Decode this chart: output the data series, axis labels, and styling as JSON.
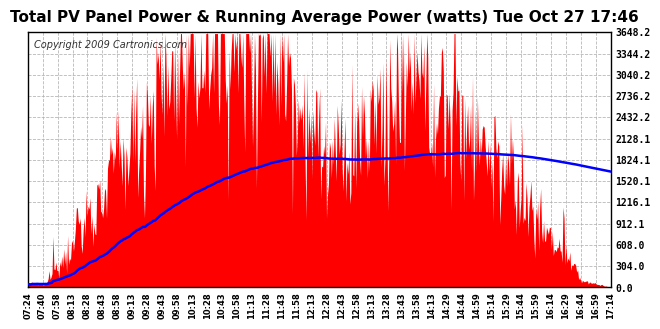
{
  "title": "Total PV Panel Power & Running Average Power (watts) Tue Oct 27 17:46",
  "copyright": "Copyright 2009 Cartronics.com",
  "yticks": [
    0.0,
    304.0,
    608.0,
    912.1,
    1216.1,
    1520.1,
    1824.1,
    2128.1,
    2432.2,
    2736.2,
    3040.2,
    3344.2,
    3648.2
  ],
  "ytick_labels": [
    "0.0",
    "304.0",
    "608.0",
    "912.1",
    "1216.1",
    "1520.1",
    "1824.1",
    "2128.1",
    "2432.2",
    "2736.2",
    "3040.2",
    "3344.2",
    "3648.2"
  ],
  "ymax": 3648.2,
  "bar_color": "#ff0000",
  "line_color": "#0000ff",
  "background_color": "#ffffff",
  "plot_bg_color": "#ffffff",
  "grid_color": "#b0b0b0",
  "title_fontsize": 11,
  "copyright_fontsize": 7,
  "xtick_labels": [
    "07:24",
    "07:40",
    "07:58",
    "08:13",
    "08:28",
    "08:43",
    "08:58",
    "09:13",
    "09:28",
    "09:43",
    "09:58",
    "10:13",
    "10:28",
    "10:43",
    "10:58",
    "11:13",
    "11:28",
    "11:43",
    "11:58",
    "12:13",
    "12:28",
    "12:43",
    "12:58",
    "13:13",
    "13:28",
    "13:43",
    "13:58",
    "14:13",
    "14:29",
    "14:44",
    "14:59",
    "15:14",
    "15:29",
    "15:44",
    "15:59",
    "16:14",
    "16:29",
    "16:44",
    "16:59",
    "17:14"
  ]
}
